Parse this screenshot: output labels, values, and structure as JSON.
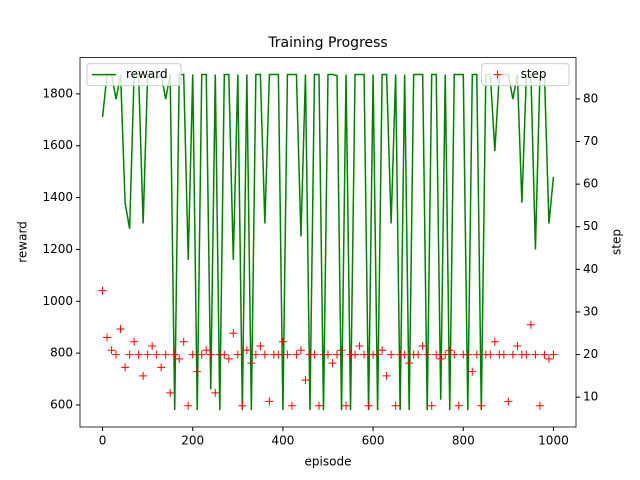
{
  "chart_data": {
    "type": "line-scatter-dual",
    "title": "Training Progress",
    "xlabel": "episode",
    "ylabel": "reward",
    "y2label": "step",
    "xlim": [
      -50,
      1050
    ],
    "xticks": [
      0,
      200,
      400,
      600,
      800,
      1000
    ],
    "ylim": [
      515,
      1940
    ],
    "yticks": [
      600,
      800,
      1000,
      1200,
      1400,
      1600,
      1800
    ],
    "y2lim": [
      3,
      89.7
    ],
    "y2ticks": [
      10,
      20,
      30,
      40,
      50,
      60,
      70,
      80
    ],
    "x": [
      0,
      10,
      20,
      30,
      40,
      50,
      60,
      70,
      80,
      90,
      100,
      110,
      120,
      130,
      140,
      150,
      160,
      170,
      180,
      190,
      200,
      210,
      220,
      230,
      240,
      250,
      260,
      270,
      280,
      290,
      300,
      310,
      320,
      330,
      340,
      350,
      360,
      370,
      380,
      390,
      400,
      410,
      420,
      430,
      440,
      450,
      460,
      470,
      480,
      490,
      500,
      510,
      520,
      530,
      540,
      550,
      560,
      570,
      580,
      590,
      600,
      610,
      620,
      630,
      640,
      650,
      660,
      670,
      680,
      690,
      700,
      710,
      720,
      730,
      740,
      750,
      760,
      770,
      780,
      790,
      800,
      810,
      820,
      830,
      840,
      850,
      860,
      870,
      880,
      890,
      900,
      910,
      920,
      930,
      940,
      950,
      960,
      970,
      980,
      990,
      1000
    ],
    "series": [
      {
        "name": "reward",
        "color": "green",
        "axis": "y",
        "legend": "upper left",
        "values": [
          1710,
          1875,
          1875,
          1780,
          1875,
          1380,
          1280,
          1875,
          1875,
          1300,
          1875,
          1875,
          1860,
          1875,
          1780,
          1875,
          580,
          1875,
          1875,
          1160,
          1875,
          580,
          1875,
          1875,
          660,
          1875,
          580,
          1875,
          1875,
          1160,
          1875,
          580,
          1875,
          580,
          1875,
          1875,
          1300,
          1875,
          1875,
          1875,
          580,
          1875,
          1875,
          1875,
          1250,
          1875,
          580,
          1875,
          1875,
          580,
          1875,
          1875,
          1870,
          580,
          1875,
          580,
          1875,
          1875,
          1875,
          580,
          1875,
          580,
          1875,
          1875,
          1300,
          1875,
          580,
          1875,
          580,
          1875,
          1875,
          1875,
          580,
          1875,
          1875,
          620,
          1875,
          580,
          1875,
          1875,
          1875,
          580,
          1875,
          1875,
          580,
          1875,
          1875,
          1580,
          1875,
          1875,
          1875,
          1780,
          1875,
          1380,
          1875,
          1875,
          1200,
          1875,
          1875,
          1300,
          1480
        ]
      },
      {
        "name": "step",
        "color": "red",
        "axis": "y2",
        "legend": "upper right",
        "values": [
          35,
          24,
          21,
          20,
          26,
          17,
          20,
          23,
          20,
          15,
          20,
          22,
          20,
          17,
          20,
          11,
          20,
          19,
          23,
          8,
          20,
          16,
          20,
          21,
          20,
          11,
          20,
          20,
          19,
          25,
          20,
          8,
          21,
          18,
          20,
          22,
          20,
          9,
          20,
          20,
          23,
          20,
          8,
          20,
          21,
          14,
          20,
          20,
          8,
          20,
          20,
          18,
          20,
          21,
          8,
          20,
          20,
          22,
          20,
          8,
          20,
          20,
          21,
          15,
          20,
          8,
          20,
          20,
          18,
          20,
          20,
          22,
          20,
          8,
          20,
          19,
          20,
          21,
          20,
          8,
          20,
          20,
          16,
          20,
          8,
          20,
          20,
          23,
          20,
          20,
          9,
          20,
          22,
          20,
          20,
          27,
          20,
          8,
          20,
          19,
          20
        ]
      }
    ]
  }
}
